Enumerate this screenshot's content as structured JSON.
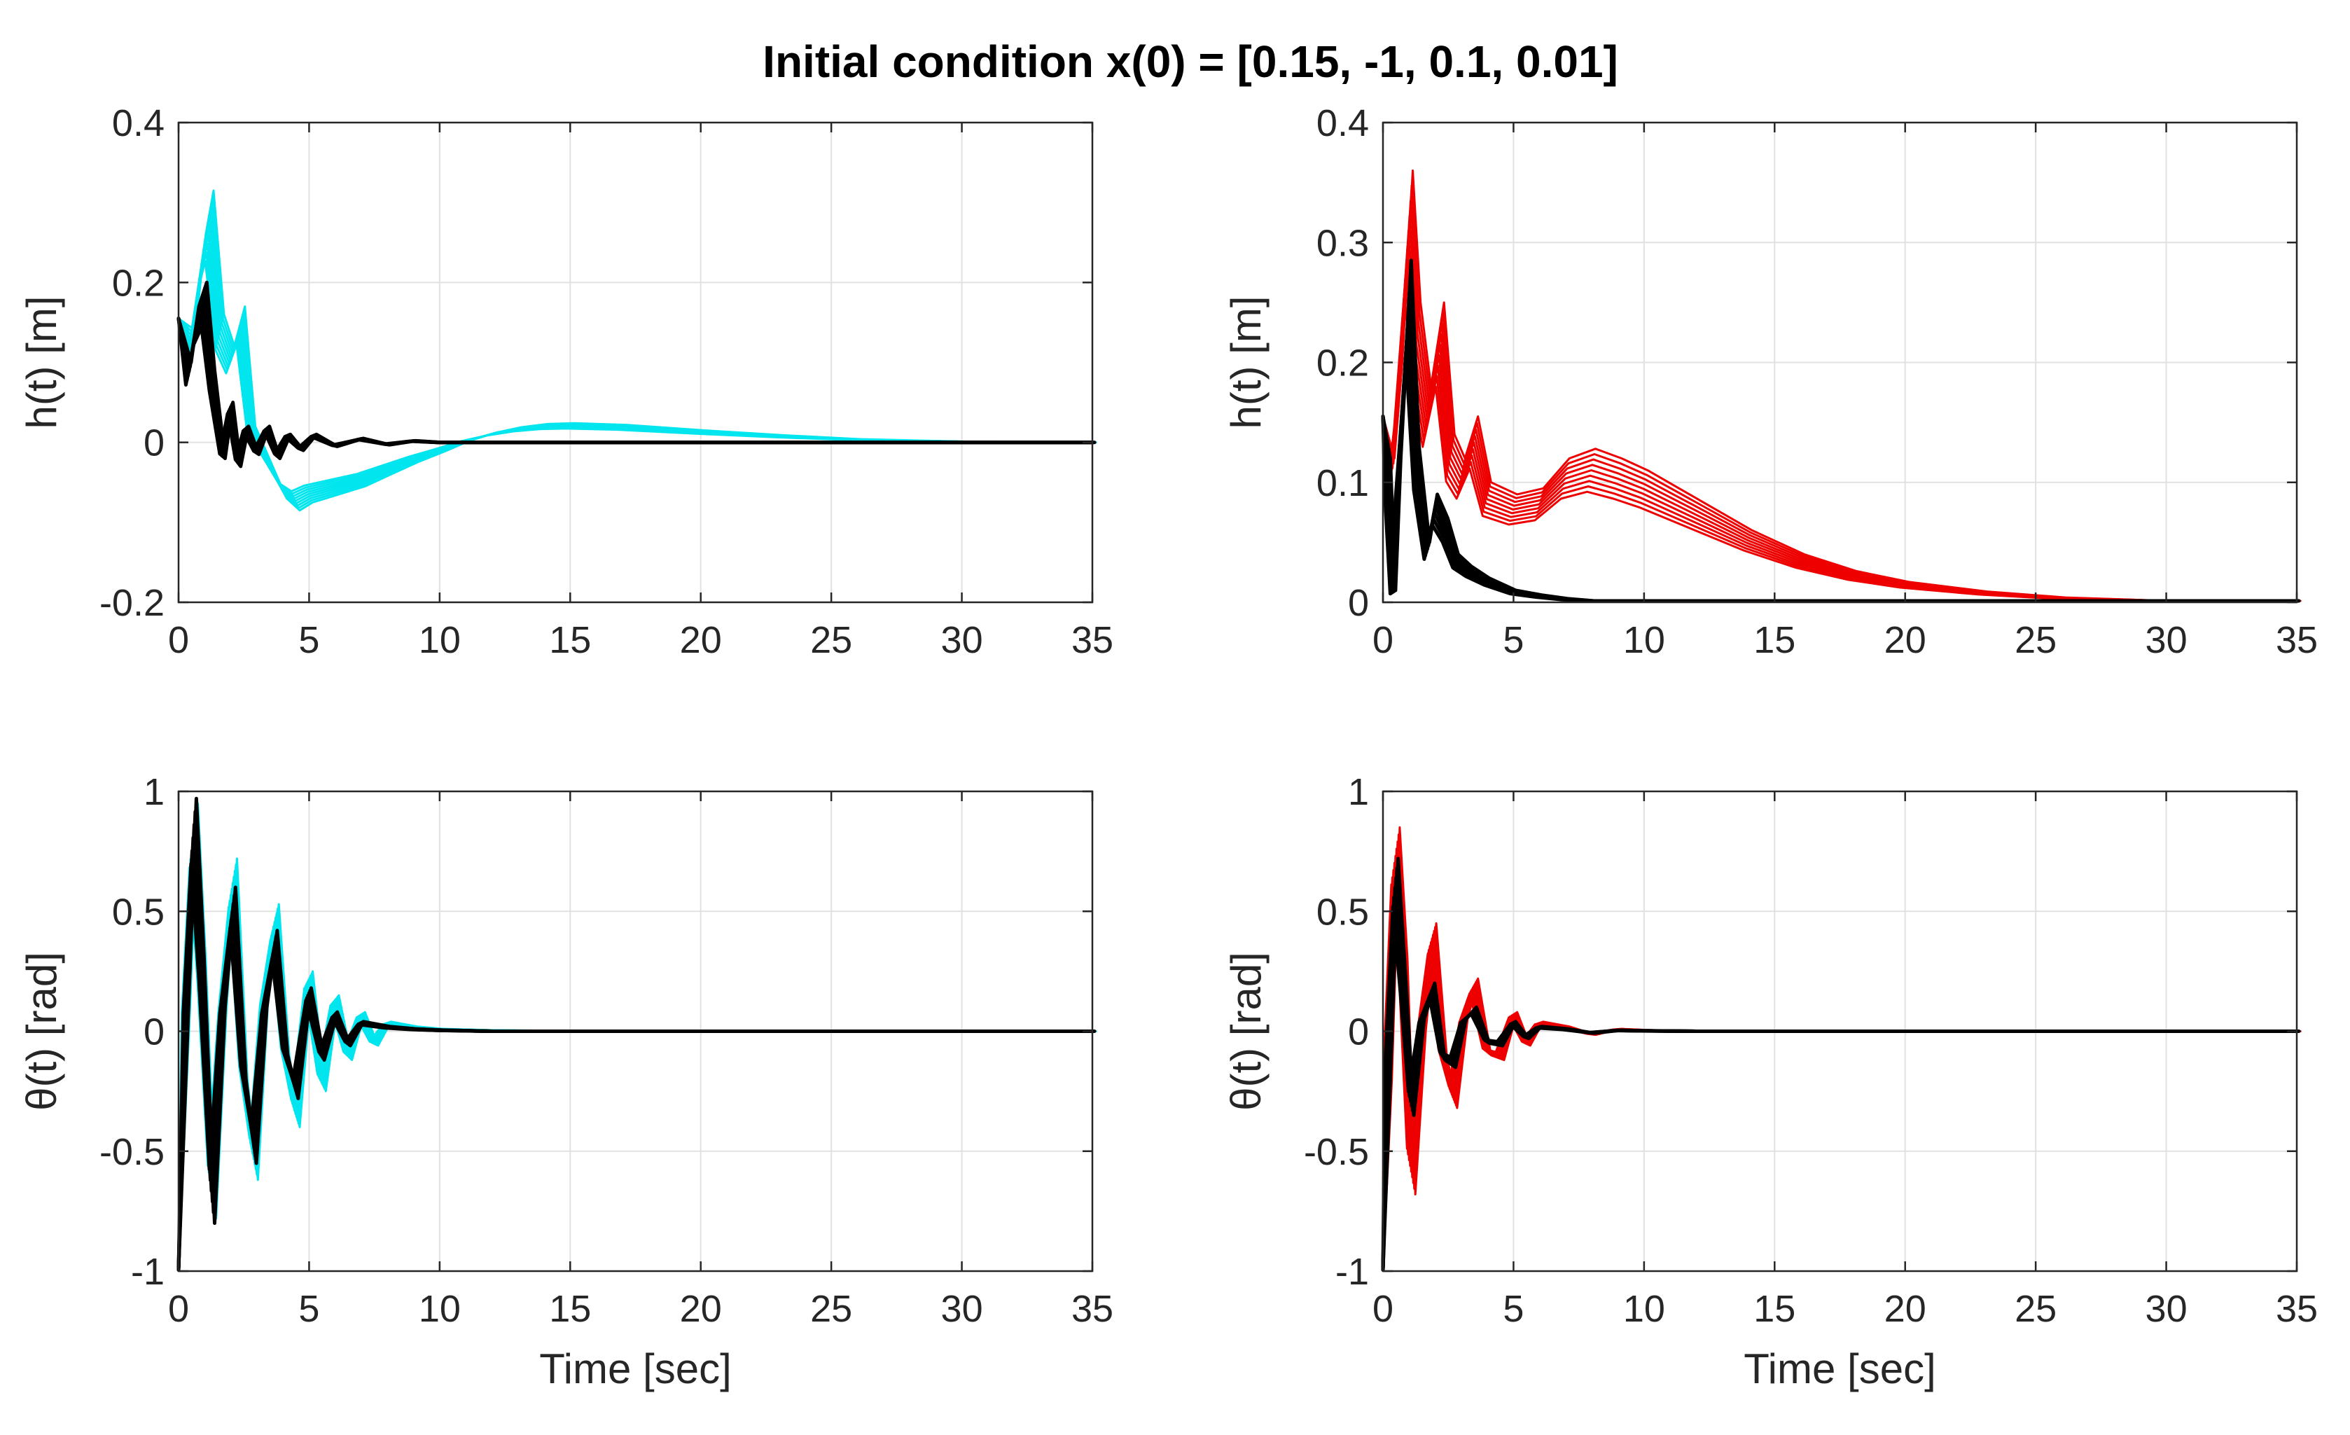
{
  "figure": {
    "title": "Initial condition x(0) = [0.15, -1, 0.1, 0.01]",
    "colors": {
      "cyan": "#00e5ee",
      "red": "#ee0000",
      "black": "#000000",
      "grid": "#e1e1e1",
      "axis": "#262626"
    }
  },
  "chart_data": [
    {
      "type": "line",
      "title": "",
      "xlabel": "",
      "ylabel": "h(t) [m]",
      "xlim": [
        0,
        35
      ],
      "ylim": [
        -0.2,
        0.4
      ],
      "xticks": [
        "0",
        "5",
        "10",
        "15",
        "20",
        "25",
        "30",
        "35"
      ],
      "yticks": [
        "-0.2",
        "0",
        "0.2",
        "0.4"
      ],
      "grid": true,
      "series": [
        {
          "name": "cyan trajectories",
          "color": "cyan",
          "x": [
            0,
            0.5,
            0.9,
            1.2,
            1.6,
            2.0,
            2.4,
            2.8,
            3.2,
            3.6,
            4.0,
            4.5,
            5,
            6,
            7,
            8,
            9,
            10,
            11,
            12,
            13,
            14,
            15,
            17,
            20,
            23,
            26,
            30,
            35
          ],
          "values": [
            0.155,
            0.14,
            0.26,
            0.315,
            0.16,
            0.12,
            0.17,
            0.02,
            -0.01,
            -0.04,
            -0.07,
            -0.085,
            -0.075,
            -0.065,
            -0.055,
            -0.04,
            -0.025,
            -0.012,
            0.002,
            0.012,
            0.019,
            0.023,
            0.024,
            0.022,
            0.015,
            0.009,
            0.004,
            0.001,
            0.0
          ]
        },
        {
          "name": "black trajectories",
          "color": "black",
          "x": [
            0,
            0.4,
            0.7,
            1.0,
            1.3,
            1.7,
            2.0,
            2.3,
            2.6,
            3.0,
            3.4,
            3.8,
            4.2,
            4.7,
            5.2,
            6,
            7,
            8,
            9,
            10,
            12,
            15,
            20,
            35
          ],
          "values": [
            0.155,
            0.1,
            0.17,
            0.2,
            0.09,
            -0.02,
            0.05,
            -0.03,
            0.02,
            -0.015,
            0.02,
            -0.02,
            0.01,
            -0.01,
            0.01,
            -0.005,
            0.005,
            -0.003,
            0.002,
            0.0,
            0.0,
            0.0,
            0.0,
            0.0
          ]
        }
      ]
    },
    {
      "type": "line",
      "title": "",
      "xlabel": "",
      "ylabel": "h(t) [m]",
      "xlim": [
        0,
        35
      ],
      "ylim": [
        0,
        0.4
      ],
      "xticks": [
        "0",
        "5",
        "10",
        "15",
        "20",
        "25",
        "30",
        "35"
      ],
      "yticks": [
        "0",
        "0.1",
        "0.2",
        "0.3",
        "0.4"
      ],
      "grid": true,
      "series": [
        {
          "name": "red trajectories",
          "color": "red",
          "x": [
            0,
            0.3,
            0.6,
            1.0,
            1.3,
            1.7,
            2.2,
            2.6,
            3.0,
            3.5,
            4.0,
            5,
            6,
            7,
            8,
            9,
            10,
            12,
            14,
            16,
            18,
            20,
            23,
            26,
            30,
            35
          ],
          "values": [
            0.155,
            0.12,
            0.2,
            0.36,
            0.25,
            0.18,
            0.25,
            0.14,
            0.12,
            0.155,
            0.1,
            0.09,
            0.095,
            0.12,
            0.128,
            0.12,
            0.11,
            0.085,
            0.06,
            0.04,
            0.026,
            0.017,
            0.009,
            0.004,
            0.001,
            0.0
          ]
        },
        {
          "name": "black trajectories",
          "color": "black",
          "x": [
            0,
            0.2,
            0.4,
            0.6,
            0.8,
            1.0,
            1.3,
            1.7,
            2.0,
            2.4,
            2.8,
            3.3,
            4,
            5,
            6,
            7,
            8,
            9,
            10,
            12,
            15,
            35
          ],
          "values": [
            0.155,
            0.12,
            0.01,
            0.12,
            0.2,
            0.285,
            0.13,
            0.05,
            0.09,
            0.07,
            0.04,
            0.03,
            0.02,
            0.01,
            0.006,
            0.003,
            0.001,
            0.0,
            0.0,
            0.0,
            0.0,
            0.0
          ]
        }
      ]
    },
    {
      "type": "line",
      "title": "",
      "xlabel": "Time [sec]",
      "ylabel": "θ(t) [rad]",
      "xlim": [
        0,
        35
      ],
      "ylim": [
        -1,
        1
      ],
      "xticks": [
        "0",
        "5",
        "10",
        "15",
        "20",
        "25",
        "30",
        "35"
      ],
      "yticks": [
        "-1",
        "-0.5",
        "0",
        "0.5",
        "1"
      ],
      "grid": true,
      "series": [
        {
          "name": "cyan trajectories",
          "color": "cyan",
          "x": [
            0,
            0.3,
            0.6,
            0.9,
            1.3,
            1.7,
            2.1,
            2.5,
            2.9,
            3.3,
            3.7,
            4.1,
            4.5,
            5.0,
            5.5,
            6.0,
            6.5,
            7.0,
            7.5,
            8.0,
            9,
            10,
            12,
            15,
            20,
            35
          ],
          "values": [
            -1.0,
            0.1,
            0.95,
            0.3,
            -0.78,
            0.1,
            0.72,
            -0.2,
            -0.62,
            0.15,
            0.53,
            -0.1,
            -0.4,
            0.25,
            -0.25,
            0.15,
            -0.12,
            0.08,
            -0.06,
            0.04,
            0.02,
            0.01,
            0.004,
            0.002,
            0.0,
            0.0
          ]
        },
        {
          "name": "black trajectories",
          "color": "black",
          "x": [
            0,
            0.3,
            0.6,
            0.9,
            1.3,
            1.7,
            2.1,
            2.5,
            2.9,
            3.3,
            3.7,
            4.1,
            4.5,
            5.0,
            5.5,
            6.0,
            6.5,
            7.0,
            8,
            9,
            10,
            12,
            15,
            35
          ],
          "values": [
            -1.0,
            0.1,
            0.97,
            0.3,
            -0.8,
            0.1,
            0.6,
            -0.2,
            -0.55,
            0.1,
            0.42,
            -0.1,
            -0.28,
            0.18,
            -0.12,
            0.08,
            -0.06,
            0.04,
            0.02,
            0.01,
            0.005,
            0.0,
            0.0,
            0.0
          ]
        }
      ]
    },
    {
      "type": "line",
      "title": "",
      "xlabel": "Time [sec]",
      "ylabel": "θ(t) [rad]",
      "xlim": [
        0,
        35
      ],
      "ylim": [
        -1,
        1
      ],
      "xticks": [
        "0",
        "5",
        "10",
        "15",
        "20",
        "25",
        "30",
        "35"
      ],
      "yticks": [
        "-1",
        "-0.5",
        "0",
        "0.5",
        "1"
      ],
      "grid": true,
      "series": [
        {
          "name": "red trajectories",
          "color": "red",
          "x": [
            0,
            0.2,
            0.5,
            0.8,
            1.1,
            1.5,
            1.9,
            2.3,
            2.7,
            3.1,
            3.5,
            4.0,
            4.5,
            5.0,
            5.5,
            6,
            7,
            8,
            9,
            10,
            12,
            15,
            35
          ],
          "values": [
            -1.0,
            -0.2,
            0.85,
            0.3,
            -0.68,
            0.0,
            0.45,
            -0.1,
            -0.32,
            0.05,
            0.22,
            -0.1,
            -0.12,
            0.08,
            -0.06,
            0.04,
            0.02,
            -0.015,
            0.01,
            0.005,
            0.0,
            0.0,
            0.0
          ]
        },
        {
          "name": "black trajectories",
          "color": "black",
          "x": [
            0,
            0.2,
            0.5,
            0.8,
            1.1,
            1.5,
            1.9,
            2.3,
            2.7,
            3.1,
            3.5,
            4.0,
            4.5,
            5.0,
            5.5,
            6,
            7,
            8,
            9,
            10,
            12,
            15,
            35
          ],
          "values": [
            -1.0,
            -0.2,
            0.72,
            0.2,
            -0.35,
            0.05,
            0.2,
            -0.12,
            -0.15,
            0.05,
            0.1,
            -0.05,
            -0.06,
            0.04,
            -0.03,
            0.02,
            0.01,
            -0.008,
            0.004,
            0.002,
            0.0,
            0.0,
            0.0
          ]
        }
      ]
    }
  ]
}
